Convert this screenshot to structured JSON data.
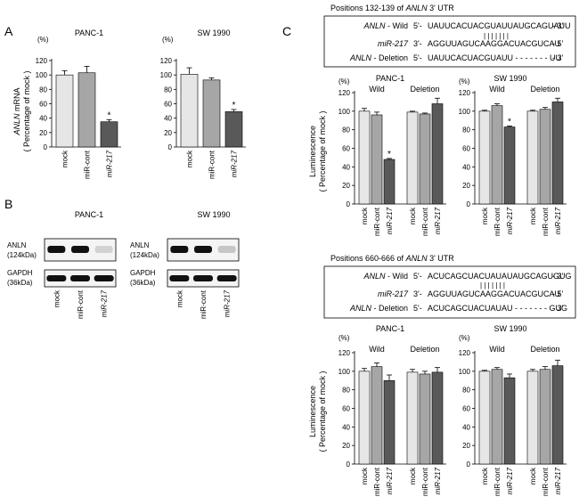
{
  "panel_letters": {
    "a": "A",
    "b": "B",
    "c": "C"
  },
  "symbols": {
    "percent": "(%)",
    "asterisk": "*"
  },
  "panel_a": {
    "ylabel_line1_gene": "ANLN",
    "ylabel_line1_rest": " mRNA",
    "ylabel_line2": "( Percentage of mock )"
  },
  "panel_c": {
    "ylabel_line1": "Luminescence",
    "ylabel_line2": "( Percentage of mock )",
    "group_wild": "Wild",
    "group_deletion": "Deletion"
  },
  "site1": {
    "title_prefix": "Positions 132-139 of ",
    "title_gene": "ANLN",
    "title_suffix": " 3' UTR",
    "rows": [
      {
        "gene": "ANLN",
        "label": " - Wild",
        "p5": "5'-",
        "seq": "UAUUCACUACGUAUUAUGCAGUAUU",
        "p3": "- 3'"
      },
      {
        "gene": "miR-217",
        "label": "",
        "p5": "3'-",
        "seq": "AGGUUAGUCAAGGACUACGUCAU",
        "p3": "- 5'"
      },
      {
        "gene": "ANLN",
        "label": " - Deletion",
        "p5": "5'-",
        "seq": "UAUUCACUACGUAUU - - - - - - - UU",
        "p3": "- 3'"
      }
    ],
    "pairing": "| | | | | | |"
  },
  "site2": {
    "title_prefix": "Positions 660-666 of ",
    "title_gene": "ANLN",
    "title_suffix": " 3' UTR",
    "rows": [
      {
        "gene": "ANLN",
        "label": " - Wild",
        "p5": "5'-",
        "seq": "ACUCAGCUACUAUAUAUGCAGUGUG",
        "p3": "- 3'"
      },
      {
        "gene": "miR-217",
        "label": "",
        "p5": "3'-",
        "seq": "AGGUUAGUCAAGGACUACGUCAU",
        "p3": "- 5'"
      },
      {
        "gene": "ANLN",
        "label": " - Deletion",
        "p5": "5'-",
        "seq": "ACUCAGCUACUAUAU - - - - - - - GUG",
        "p3": "- 3'"
      }
    ],
    "pairing": "| | | | | | |"
  },
  "blot": {
    "panels": [
      {
        "title": "PANC-1",
        "band1_label": "ANLN",
        "band1_kda": "(124kDa)",
        "band2_label": "GAPDH",
        "band2_kda": "(36kDa)",
        "lanes": [
          "mock",
          "miR-cont",
          "miR-217"
        ],
        "anln_intensity": [
          1.0,
          1.0,
          0.15
        ],
        "gapdh_intensity": [
          1.0,
          1.0,
          1.0
        ]
      },
      {
        "title": "SW 1990",
        "band1_label": "ANLN",
        "band1_kda": "(124kDa)",
        "band2_label": "GAPDH",
        "band2_kda": "(36kDa)",
        "lanes": [
          "mock",
          "miR-cont",
          "miR-217"
        ],
        "anln_intensity": [
          1.0,
          1.0,
          0.2
        ],
        "gapdh_intensity": [
          1.0,
          1.0,
          1.0
        ]
      }
    ]
  },
  "chart_data": [
    {
      "id": "a1",
      "type": "bar",
      "title": "PANC-1",
      "ylabel": "ANLN mRNA (Percentage of mock)",
      "categories": [
        "mock",
        "miR-cont",
        "miR-217"
      ],
      "values": [
        100,
        103,
        35
      ],
      "errors": [
        6,
        9,
        3
      ],
      "significant": [
        false,
        false,
        true
      ],
      "ylim": [
        0,
        120
      ],
      "yticks": [
        0,
        20,
        40,
        60,
        80,
        100,
        120
      ]
    },
    {
      "id": "a2",
      "type": "bar",
      "title": "SW 1990",
      "ylabel": "ANLN mRNA (Percentage of mock)",
      "categories": [
        "mock",
        "miR-cont",
        "miR-217"
      ],
      "values": [
        101,
        93,
        49
      ],
      "errors": [
        9,
        3,
        3
      ],
      "significant": [
        false,
        false,
        true
      ],
      "ylim": [
        0,
        120
      ],
      "yticks": [
        0,
        20,
        40,
        60,
        80,
        100,
        120
      ]
    },
    {
      "id": "c1",
      "type": "bar",
      "title": "PANC-1",
      "site": "132-139",
      "ylabel": "Luminescence (Percentage of mock)",
      "groups": [
        "Wild",
        "Deletion"
      ],
      "categories": [
        "mock",
        "miR-cont",
        "miR-217",
        "mock",
        "miR-cont",
        "miR-217"
      ],
      "values": [
        100,
        96,
        48,
        99,
        97,
        108
      ],
      "errors": [
        3,
        3,
        1,
        1,
        1,
        6
      ],
      "significant": [
        false,
        false,
        true,
        false,
        false,
        false
      ],
      "ylim": [
        0,
        120
      ],
      "yticks": [
        0,
        20,
        40,
        60,
        80,
        100,
        120
      ]
    },
    {
      "id": "c2",
      "type": "bar",
      "title": "SW 1990",
      "site": "132-139",
      "ylabel": "Luminescence (Percentage of mock)",
      "groups": [
        "Wild",
        "Deletion"
      ],
      "categories": [
        "mock",
        "miR-cont",
        "miR-217",
        "mock",
        "miR-cont",
        "miR-217"
      ],
      "values": [
        100,
        106,
        83,
        100,
        102,
        110
      ],
      "errors": [
        1,
        2,
        1,
        1,
        2,
        4
      ],
      "significant": [
        false,
        false,
        true,
        false,
        false,
        false
      ],
      "ylim": [
        0,
        120
      ],
      "yticks": [
        0,
        20,
        40,
        60,
        80,
        100,
        120
      ]
    },
    {
      "id": "c3",
      "type": "bar",
      "title": "PANC-1",
      "site": "660-666",
      "ylabel": "Luminescence (Percentage of mock)",
      "groups": [
        "Wild",
        "Deletion"
      ],
      "categories": [
        "mock",
        "miR-cont",
        "miR-217",
        "mock",
        "miR-cont",
        "miR-217"
      ],
      "values": [
        100,
        105,
        90,
        99,
        97,
        99
      ],
      "errors": [
        3,
        4,
        6,
        3,
        3,
        5
      ],
      "significant": [
        false,
        false,
        false,
        false,
        false,
        false
      ],
      "ylim": [
        0,
        120
      ],
      "yticks": [
        0,
        20,
        40,
        60,
        80,
        100,
        120
      ]
    },
    {
      "id": "c4",
      "type": "bar",
      "title": "SW 1990",
      "site": "660-666",
      "ylabel": "Luminescence (Percentage of mock)",
      "groups": [
        "Wild",
        "Deletion"
      ],
      "categories": [
        "mock",
        "miR-cont",
        "miR-217",
        "mock",
        "miR-cont",
        "miR-217"
      ],
      "values": [
        100,
        102,
        93,
        100,
        102,
        106
      ],
      "errors": [
        1,
        2,
        4,
        2,
        3,
        6
      ],
      "significant": [
        false,
        false,
        false,
        false,
        false,
        false
      ],
      "ylim": [
        0,
        120
      ],
      "yticks": [
        0,
        20,
        40,
        60,
        80,
        100,
        120
      ]
    }
  ],
  "colors": {
    "bar_shades": [
      "#e6e6e6",
      "#a6a6a6",
      "#595959"
    ],
    "axis": "#000000",
    "box_border": "#000000"
  }
}
